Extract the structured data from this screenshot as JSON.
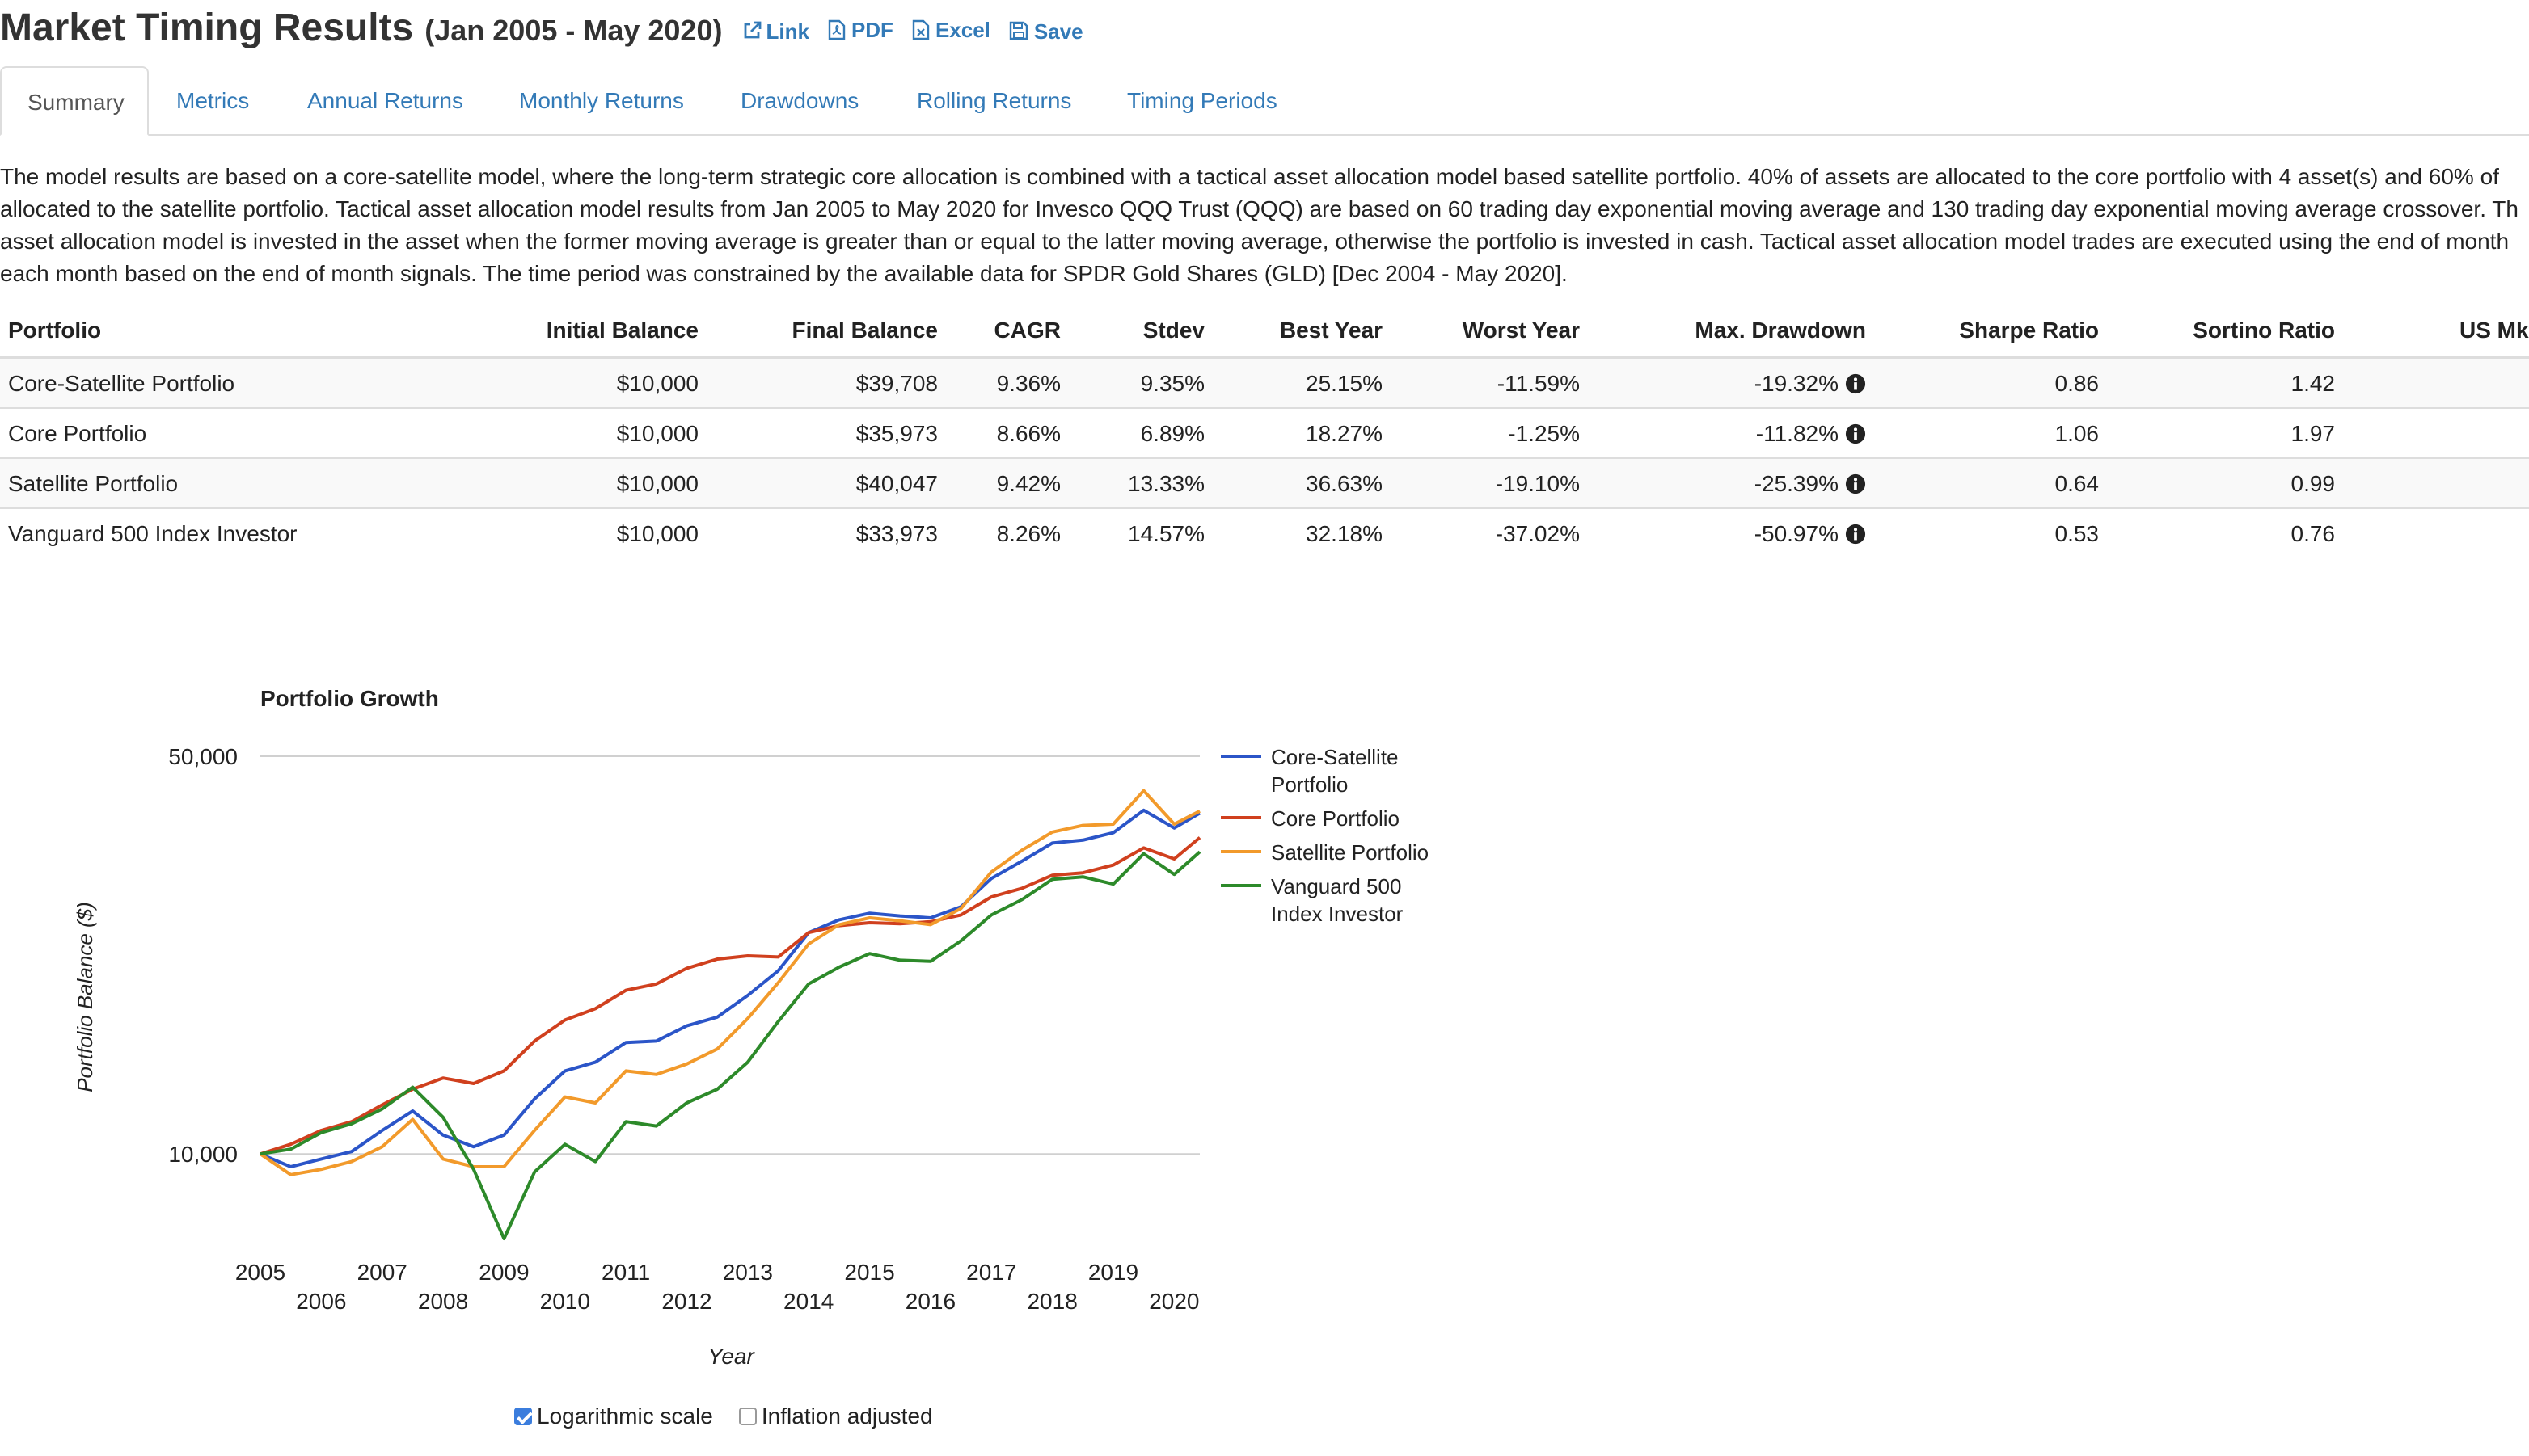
{
  "header": {
    "title": "Market Timing Results",
    "date_range": "(Jan 2005 - May 2020)",
    "link_label": "Link",
    "pdf_label": "PDF",
    "excel_label": "Excel",
    "save_label": "Save"
  },
  "tabs": [
    "Summary",
    "Metrics",
    "Annual Returns",
    "Monthly Returns",
    "Drawdowns",
    "Rolling Returns",
    "Timing Periods"
  ],
  "description_lines": [
    "The model results are based on a core-satellite model, where the long-term strategic core allocation is combined with a tactical asset allocation model based satellite portfolio. 40% of assets are allocated to the core portfolio with 4 asset(s) and 60% of",
    "allocated to the satellite portfolio. Tactical asset allocation model results from Jan 2005 to May 2020 for Invesco QQQ Trust (QQQ) are based on 60 trading day exponential moving average and 130 trading day exponential moving average crossover. Th",
    "asset allocation model is invested in the asset when the former moving average is greater than or equal to the latter moving average, otherwise the portfolio is invested in cash. Tactical asset allocation model trades are executed using the end of month",
    "each month based on the end of month signals. The time period was constrained by the available data for SPDR Gold Shares (GLD) [Dec 2004 - May 2020]."
  ],
  "table": {
    "headers": [
      "Portfolio",
      "Initial Balance",
      "Final Balance",
      "CAGR",
      "Stdev",
      "Best Year",
      "Worst Year",
      "Max. Drawdown",
      "Sharpe Ratio",
      "Sortino Ratio",
      "US Mkt"
    ],
    "rows": [
      [
        "Core-Satellite Portfolio",
        "$10,000",
        "$39,708",
        "9.36%",
        "9.35%",
        "25.15%",
        "-11.59%",
        "-19.32%",
        "0.86",
        "1.42"
      ],
      [
        "Core Portfolio",
        "$10,000",
        "$35,973",
        "8.66%",
        "6.89%",
        "18.27%",
        "-1.25%",
        "-11.82%",
        "1.06",
        "1.97"
      ],
      [
        "Satellite Portfolio",
        "$10,000",
        "$40,047",
        "9.42%",
        "13.33%",
        "36.63%",
        "-19.10%",
        "-25.39%",
        "0.64",
        "0.99"
      ],
      [
        "Vanguard 500 Index Investor",
        "$10,000",
        "$33,973",
        "8.26%",
        "14.57%",
        "32.18%",
        "-37.02%",
        "-50.97%",
        "0.53",
        "0.76"
      ]
    ]
  },
  "chart_data": {
    "type": "line",
    "title": "Portfolio Growth",
    "xlabel": "Year",
    "ylabel": "Portfolio Balance ($)",
    "yscale": "log",
    "ylim": [
      6500,
      52000
    ],
    "xlim": [
      2005,
      2020.42
    ],
    "y_ticks": [
      10000,
      50000
    ],
    "y_tick_labels": [
      "10,000",
      "50,000"
    ],
    "x_ticks": [
      2005,
      2006,
      2007,
      2008,
      2009,
      2010,
      2011,
      2012,
      2013,
      2014,
      2015,
      2016,
      2017,
      2018,
      2019,
      2020
    ],
    "legend_position": "right",
    "x": [
      2005,
      2005.5,
      2006,
      2006.5,
      2007,
      2007.5,
      2008,
      2008.5,
      2009,
      2009.5,
      2010,
      2010.5,
      2011,
      2011.5,
      2012,
      2012.5,
      2013,
      2013.5,
      2014,
      2014.5,
      2015,
      2015.5,
      2016,
      2016.5,
      2017,
      2017.5,
      2018,
      2018.5,
      2019,
      2019.5,
      2020,
      2020.42
    ],
    "series": [
      {
        "name": "Core-Satellite Portfolio",
        "color": "#2b55c8",
        "values": [
          10000,
          9500,
          9800,
          10100,
          11000,
          11900,
          10800,
          10300,
          10800,
          12500,
          14000,
          14500,
          15700,
          15800,
          16800,
          17400,
          19000,
          21000,
          24500,
          25800,
          26500,
          26200,
          26000,
          27200,
          30500,
          32700,
          35200,
          35600,
          36700,
          40200,
          37400,
          39708
        ]
      },
      {
        "name": "Core Portfolio",
        "color": "#d0401e",
        "values": [
          10000,
          10400,
          11000,
          11400,
          12200,
          13000,
          13600,
          13300,
          14000,
          15800,
          17200,
          18000,
          19400,
          19900,
          21200,
          22000,
          22300,
          22200,
          24500,
          25200,
          25500,
          25400,
          25600,
          26300,
          28300,
          29300,
          30900,
          31200,
          32200,
          34500,
          33000,
          35973
        ]
      },
      {
        "name": "Satellite Portfolio",
        "color": "#f29a2b",
        "values": [
          10000,
          9200,
          9400,
          9700,
          10300,
          11500,
          9800,
          9500,
          9500,
          11000,
          12600,
          12300,
          14000,
          13800,
          14400,
          15300,
          17300,
          20000,
          23400,
          25300,
          26000,
          25700,
          25300,
          27000,
          31300,
          34200,
          36800,
          37800,
          38000,
          43500,
          38000,
          40047
        ]
      },
      {
        "name": "Vanguard 500 Index Investor",
        "color": "#2d8a2a",
        "values": [
          10000,
          10200,
          10900,
          11300,
          12000,
          13100,
          11600,
          9400,
          7100,
          9300,
          10400,
          9700,
          11400,
          11200,
          12300,
          13000,
          14500,
          17100,
          19900,
          21300,
          22500,
          21900,
          21800,
          23700,
          26300,
          28000,
          30400,
          30700,
          29800,
          33700,
          31000,
          33973
        ]
      }
    ]
  },
  "controls": {
    "log_scale_label": "Logarithmic scale",
    "log_scale_checked": true,
    "inflation_label": "Inflation adjusted",
    "inflation_checked": false
  }
}
